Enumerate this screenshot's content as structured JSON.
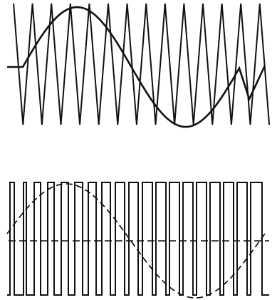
{
  "figure": {
    "type": "diagram",
    "description_visible_text": [],
    "colors": {
      "ink": "#111111",
      "background": "#ffffff"
    },
    "top_panel": {
      "carrier": "triangle-wave",
      "reference": "sine-wave",
      "carrier_cycles_visible": 13
    },
    "bottom_panel": {
      "output": "pwm-square-wave",
      "reference": "dashed-sine-wave",
      "pulse_count_visible": 13
    }
  }
}
